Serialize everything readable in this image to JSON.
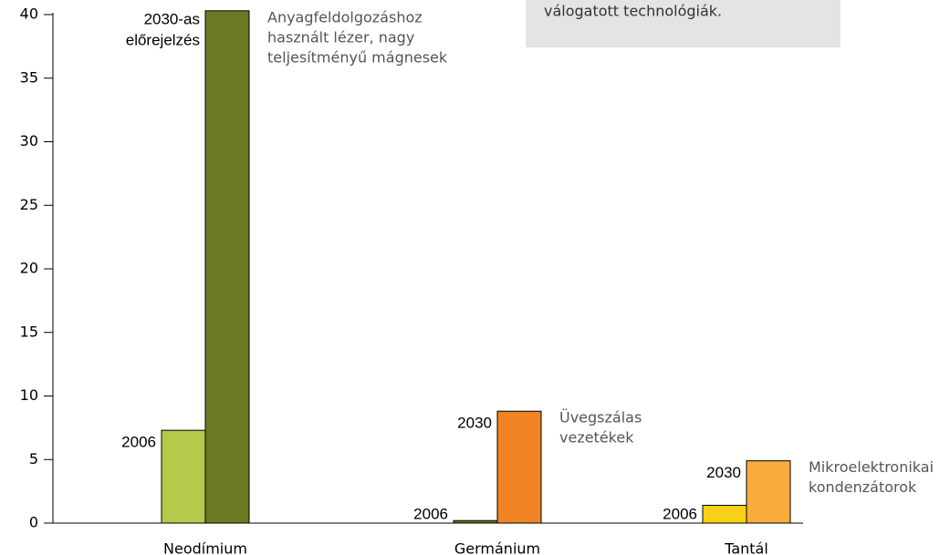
{
  "chart_data": {
    "type": "bar",
    "note": "válogatott technológiák.",
    "categories": [
      "Neodímium",
      "Germánium",
      "Tantál"
    ],
    "series": [
      {
        "name": "2006",
        "colors": [
          "#b5c94a",
          "#6b7a22",
          "#f7d117"
        ],
        "values": [
          7.3,
          0.2,
          1.4
        ],
        "bar_labels": [
          [
            "2006"
          ],
          [
            "2006"
          ],
          [
            "2006"
          ]
        ]
      },
      {
        "name": "2030",
        "colors": [
          "#6b7a22",
          "#f08424",
          "#f9ac3b"
        ],
        "values": [
          40.3,
          8.8,
          4.9
        ],
        "bar_labels": [
          [
            "2030-as",
            "előrejelzés"
          ],
          [
            "2030"
          ],
          [
            "2030"
          ]
        ]
      }
    ],
    "annotations": [
      [
        "Anyagfeldolgozáshoz",
        "használt lézer, nagy",
        "teljesítményű mágnesek"
      ],
      [
        "Üvegszálas",
        "vezetékek"
      ],
      [
        "Mikroelektronikai",
        "kondenzátorok"
      ]
    ],
    "ylim": [
      0,
      40
    ],
    "yticks": [
      0,
      5,
      10,
      15,
      20,
      25,
      30,
      35,
      40
    ]
  }
}
